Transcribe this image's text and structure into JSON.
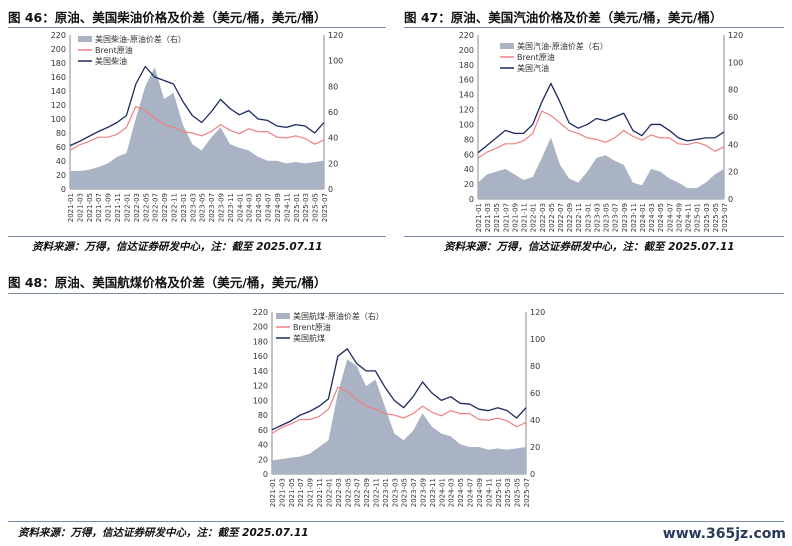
{
  "titles": {
    "fig46": "图 46：原油、美国柴油价格及价差（美元/桶，美元/桶）",
    "fig47": "图 47：原油、美国汽油价格及价差（美元/桶，美元/桶）",
    "fig48": "图 48：原油、美国航煤价格及价差（美元/桶，美元/桶）"
  },
  "sources": {
    "fig46": "资料来源：万得，信达证券研发中心，注：截至 2025.07.11",
    "fig47": "资料来源：万得，信达证券研发中心，注：截至 2025.07.11",
    "fig48": "资料来源：万得，信达证券研发中心，注：截至 2025.07.11"
  },
  "watermark": "www.365jz.com",
  "colors": {
    "spread": "#a9b3c3",
    "brent": "#f08080",
    "product": "#1a2a5e"
  },
  "chart_data": [
    {
      "id": "fig46",
      "type": "area+line",
      "x": [
        "2021-01",
        "2021-03",
        "2021-05",
        "2021-07",
        "2021-09",
        "2021-11",
        "2022-01",
        "2022-03",
        "2022-05",
        "2022-07",
        "2022-09",
        "2022-11",
        "2023-01",
        "2023-03",
        "2023-05",
        "2023-07",
        "2023-09",
        "2023-11",
        "2024-01",
        "2024-03",
        "2024-05",
        "2024-07",
        "2024-09",
        "2024-11",
        "2025-01",
        "2025-03",
        "2025-05",
        "2025-07"
      ],
      "y_left": {
        "ticks": [
          0,
          20,
          40,
          60,
          80,
          100,
          120,
          140,
          160,
          180,
          200,
          220
        ],
        "lim": [
          0,
          220
        ]
      },
      "y_right": {
        "ticks": [
          0,
          20,
          40,
          60,
          80,
          100,
          120
        ],
        "lim": [
          0,
          120
        ]
      },
      "series": [
        {
          "name": "美国柴油-原油价差（右）",
          "type": "area",
          "axis": "right",
          "values": [
            14,
            14,
            15,
            17,
            20,
            25,
            28,
            55,
            80,
            95,
            70,
            75,
            50,
            35,
            30,
            40,
            48,
            35,
            32,
            30,
            25,
            22,
            22,
            20,
            21,
            20,
            21,
            22
          ]
        },
        {
          "name": "Brent原油",
          "type": "line",
          "axis": "left",
          "values": [
            55,
            63,
            68,
            74,
            74,
            78,
            88,
            118,
            112,
            102,
            92,
            88,
            82,
            80,
            76,
            82,
            92,
            84,
            79,
            86,
            82,
            82,
            74,
            73,
            76,
            72,
            64,
            70
          ]
        },
        {
          "name": "美国柴油",
          "type": "line",
          "axis": "left",
          "values": [
            62,
            68,
            75,
            82,
            88,
            95,
            105,
            150,
            175,
            160,
            155,
            150,
            125,
            105,
            95,
            110,
            128,
            115,
            106,
            112,
            100,
            98,
            90,
            88,
            92,
            90,
            80,
            95
          ]
        }
      ]
    },
    {
      "id": "fig47",
      "type": "area+line",
      "x": [
        "2021-01",
        "2021-03",
        "2021-05",
        "2021-07",
        "2021-09",
        "2021-11",
        "2022-01",
        "2022-03",
        "2022-05",
        "2022-07",
        "2022-09",
        "2022-11",
        "2023-01",
        "2023-03",
        "2023-05",
        "2023-07",
        "2023-09",
        "2023-11",
        "2024-01",
        "2024-03",
        "2024-05",
        "2024-07",
        "2024-09",
        "2024-11",
        "2025-01",
        "2025-03",
        "2025-05",
        "2025-07"
      ],
      "y_left": {
        "ticks": [
          0,
          20,
          40,
          60,
          80,
          100,
          120,
          140,
          160,
          180,
          200,
          220
        ],
        "lim": [
          0,
          220
        ]
      },
      "y_right": {
        "ticks": [
          0,
          20,
          40,
          60,
          80,
          100,
          120
        ],
        "lim": [
          0,
          120
        ]
      },
      "series": [
        {
          "name": "美国汽油-原油价差（右）",
          "type": "area",
          "axis": "right",
          "values": [
            12,
            18,
            20,
            22,
            18,
            14,
            16,
            30,
            45,
            25,
            15,
            12,
            20,
            30,
            32,
            28,
            25,
            12,
            10,
            22,
            20,
            15,
            12,
            8,
            8,
            12,
            18,
            22
          ]
        },
        {
          "name": "Brent原油",
          "type": "line",
          "axis": "left",
          "values": [
            55,
            63,
            68,
            74,
            74,
            78,
            88,
            118,
            112,
            102,
            92,
            88,
            82,
            80,
            76,
            82,
            92,
            84,
            79,
            86,
            82,
            82,
            74,
            73,
            76,
            72,
            64,
            70
          ]
        },
        {
          "name": "美国汽油",
          "type": "line",
          "axis": "left",
          "values": [
            62,
            72,
            82,
            92,
            88,
            88,
            100,
            130,
            155,
            130,
            102,
            95,
            100,
            108,
            105,
            110,
            115,
            92,
            85,
            100,
            100,
            92,
            82,
            78,
            80,
            82,
            82,
            90
          ]
        }
      ]
    },
    {
      "id": "fig48",
      "type": "area+line",
      "x": [
        "2021-01",
        "2021-03",
        "2021-05",
        "2021-07",
        "2021-09",
        "2021-11",
        "2022-01",
        "2022-03",
        "2022-05",
        "2022-07",
        "2022-09",
        "2022-11",
        "2023-01",
        "2023-03",
        "2023-05",
        "2023-07",
        "2023-09",
        "2023-11",
        "2024-01",
        "2024-03",
        "2024-05",
        "2024-07",
        "2024-09",
        "2024-11",
        "2025-01",
        "2025-03",
        "2025-05",
        "2025-07"
      ],
      "y_left": {
        "ticks": [
          0,
          20,
          40,
          60,
          80,
          100,
          120,
          140,
          160,
          180,
          200,
          220
        ],
        "lim": [
          0,
          220
        ]
      },
      "y_right": {
        "ticks": [
          0,
          20,
          40,
          60,
          80,
          100,
          120
        ],
        "lim": [
          0,
          120
        ]
      },
      "series": [
        {
          "name": "美国航煤-原油价差（右）",
          "type": "area",
          "axis": "right",
          "values": [
            10,
            11,
            12,
            13,
            15,
            20,
            25,
            60,
            85,
            80,
            65,
            70,
            50,
            30,
            25,
            32,
            45,
            35,
            30,
            28,
            22,
            20,
            20,
            18,
            19,
            18,
            19,
            20
          ]
        },
        {
          "name": "Brent原油",
          "type": "line",
          "axis": "left",
          "values": [
            55,
            63,
            68,
            74,
            74,
            78,
            88,
            118,
            112,
            102,
            92,
            88,
            82,
            80,
            76,
            82,
            92,
            84,
            79,
            86,
            82,
            82,
            74,
            73,
            76,
            72,
            64,
            70
          ]
        },
        {
          "name": "美国航煤",
          "type": "line",
          "axis": "left",
          "values": [
            60,
            66,
            72,
            80,
            85,
            92,
            102,
            160,
            170,
            150,
            140,
            140,
            118,
            100,
            90,
            105,
            125,
            110,
            100,
            105,
            96,
            95,
            88,
            86,
            90,
            86,
            76,
            90
          ]
        }
      ]
    }
  ]
}
